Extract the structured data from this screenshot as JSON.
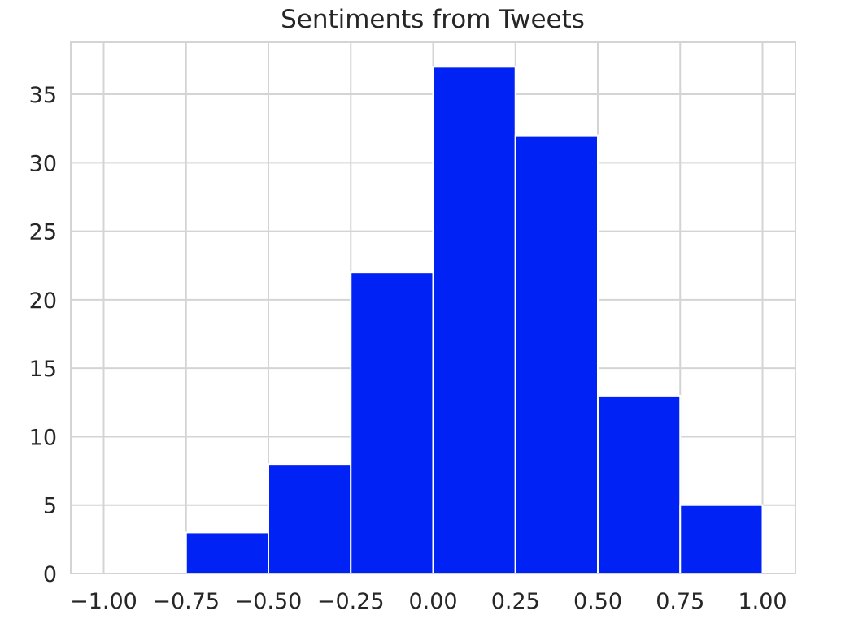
{
  "chart_data": {
    "type": "bar",
    "title": "Sentiments from Tweets",
    "xlabel": "",
    "ylabel": "",
    "bins": [
      {
        "start": -0.75,
        "end": -0.5,
        "count": 3
      },
      {
        "start": -0.5,
        "end": -0.25,
        "count": 8
      },
      {
        "start": -0.25,
        "end": 0.0,
        "count": 22
      },
      {
        "start": 0.0,
        "end": 0.25,
        "count": 37
      },
      {
        "start": 0.25,
        "end": 0.5,
        "count": 32
      },
      {
        "start": 0.5,
        "end": 0.75,
        "count": 13
      },
      {
        "start": 0.75,
        "end": 1.0,
        "count": 5
      }
    ],
    "xlim": [
      -1.1,
      1.1
    ],
    "ylim": [
      0,
      38.8
    ],
    "xticks": [
      {
        "value": -1.0,
        "label": "−1.00"
      },
      {
        "value": -0.75,
        "label": "−0.75"
      },
      {
        "value": -0.5,
        "label": "−0.50"
      },
      {
        "value": -0.25,
        "label": "−0.25"
      },
      {
        "value": 0.0,
        "label": "0.00"
      },
      {
        "value": 0.25,
        "label": "0.25"
      },
      {
        "value": 0.5,
        "label": "0.50"
      },
      {
        "value": 0.75,
        "label": "0.75"
      },
      {
        "value": 1.0,
        "label": "1.00"
      }
    ],
    "yticks": [
      {
        "value": 0,
        "label": "0"
      },
      {
        "value": 5,
        "label": "5"
      },
      {
        "value": 10,
        "label": "10"
      },
      {
        "value": 15,
        "label": "15"
      },
      {
        "value": 20,
        "label": "20"
      },
      {
        "value": 25,
        "label": "25"
      },
      {
        "value": 30,
        "label": "30"
      },
      {
        "value": 35,
        "label": "35"
      }
    ],
    "grid": true,
    "bar_color": "#0022f5",
    "grid_color": "#d4d4d4"
  }
}
